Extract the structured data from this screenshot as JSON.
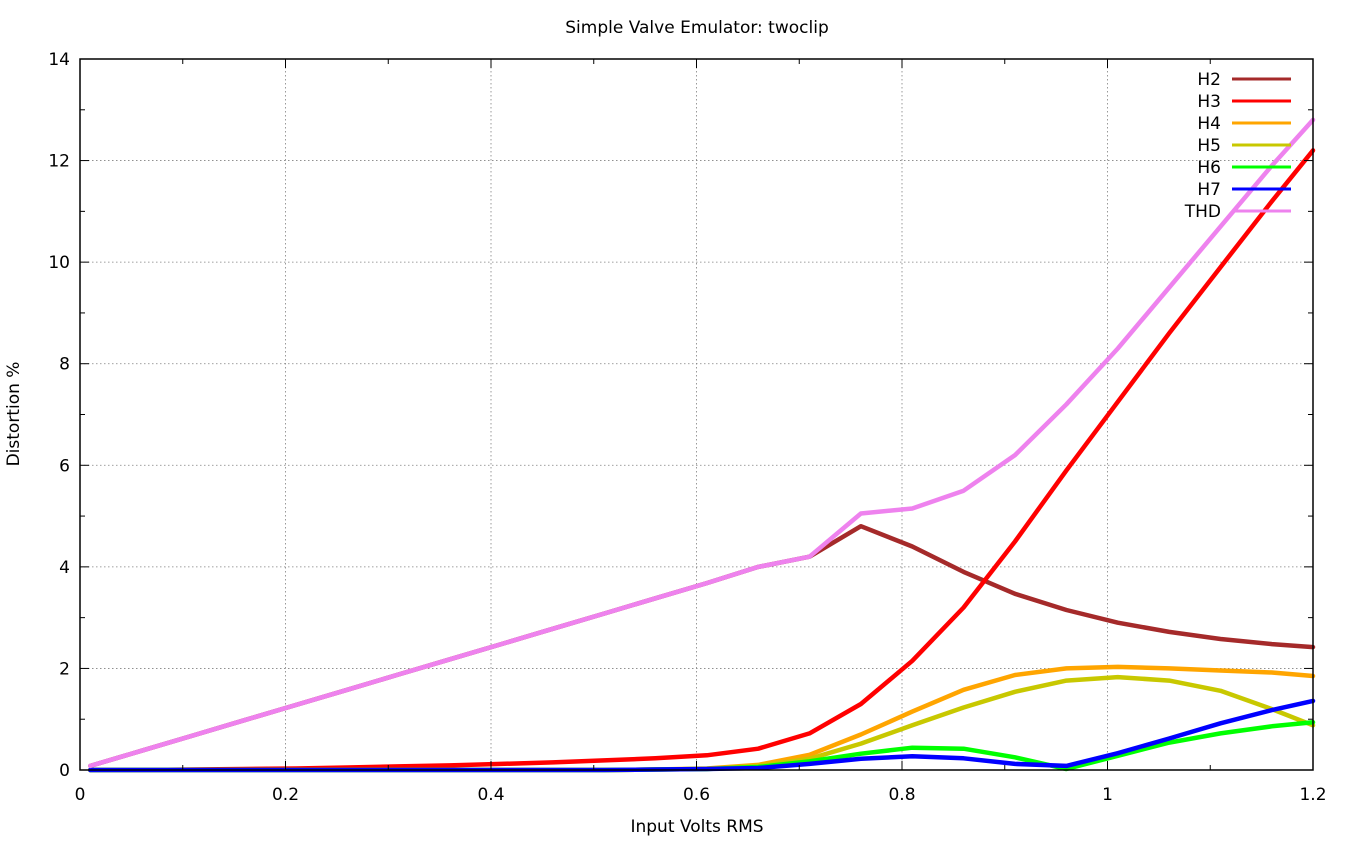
{
  "chart_data": {
    "type": "line",
    "title": "Simple Valve Emulator: twoclip",
    "xlabel": "Input Volts RMS",
    "ylabel": "Distortion %",
    "xlim": [
      0,
      1.2
    ],
    "ylim": [
      0,
      14
    ],
    "xticks": [
      0,
      0.2,
      0.4,
      0.6,
      0.8,
      1,
      1.2
    ],
    "xtick_labels": [
      "0",
      "0.2",
      "0.4",
      "0.6",
      "0.8",
      "1",
      "1.2"
    ],
    "yticks": [
      0,
      2,
      4,
      6,
      8,
      10,
      12,
      14
    ],
    "ytick_labels": [
      "0",
      "2",
      "4",
      "6",
      "8",
      "10",
      "12",
      "14"
    ],
    "grid": true,
    "legend_position": "top-right",
    "x": [
      0.01,
      0.06,
      0.11,
      0.16,
      0.21,
      0.26,
      0.31,
      0.36,
      0.41,
      0.46,
      0.51,
      0.56,
      0.61,
      0.66,
      0.71,
      0.76,
      0.81,
      0.86,
      0.91,
      0.96,
      1.01,
      1.06,
      1.11,
      1.16,
      1.2
    ],
    "series": [
      {
        "name": "H2",
        "color": "#a52a2a",
        "values": [
          0.08,
          0.38,
          0.68,
          0.98,
          1.28,
          1.58,
          1.88,
          2.18,
          2.48,
          2.78,
          3.08,
          3.38,
          3.68,
          4.0,
          4.2,
          4.8,
          4.4,
          3.9,
          3.47,
          3.15,
          2.9,
          2.72,
          2.58,
          2.48,
          2.42
        ]
      },
      {
        "name": "H3",
        "color": "#ff0000",
        "values": [
          0.0,
          0.0,
          0.01,
          0.02,
          0.03,
          0.05,
          0.07,
          0.09,
          0.12,
          0.15,
          0.19,
          0.23,
          0.29,
          0.42,
          0.72,
          1.3,
          2.15,
          3.2,
          4.5,
          5.9,
          7.25,
          8.6,
          9.9,
          11.2,
          12.2
        ]
      },
      {
        "name": "H4",
        "color": "#ffa500",
        "values": [
          0.0,
          0.0,
          0.0,
          0.0,
          0.0,
          0.0,
          0.0,
          0.0,
          0.0,
          0.0,
          0.0,
          0.01,
          0.03,
          0.1,
          0.3,
          0.7,
          1.15,
          1.58,
          1.87,
          2.0,
          2.03,
          2.0,
          1.96,
          1.92,
          1.85
        ]
      },
      {
        "name": "H5",
        "color": "#c8c800",
        "values": [
          0.0,
          0.0,
          0.0,
          0.0,
          0.0,
          0.0,
          0.0,
          0.0,
          0.0,
          0.0,
          0.0,
          0.01,
          0.02,
          0.08,
          0.22,
          0.52,
          0.88,
          1.23,
          1.54,
          1.76,
          1.83,
          1.76,
          1.56,
          1.2,
          0.88
        ]
      },
      {
        "name": "H6",
        "color": "#00ff00",
        "values": [
          0.0,
          0.0,
          0.0,
          0.0,
          0.0,
          0.0,
          0.0,
          0.0,
          0.0,
          0.0,
          0.0,
          0.01,
          0.02,
          0.06,
          0.17,
          0.32,
          0.44,
          0.42,
          0.25,
          0.02,
          0.28,
          0.54,
          0.72,
          0.86,
          0.94
        ]
      },
      {
        "name": "H7",
        "color": "#0000ff",
        "values": [
          0.0,
          0.0,
          0.0,
          0.0,
          0.0,
          0.0,
          0.0,
          0.0,
          0.0,
          0.0,
          0.0,
          0.01,
          0.02,
          0.04,
          0.12,
          0.22,
          0.27,
          0.23,
          0.12,
          0.08,
          0.33,
          0.62,
          0.92,
          1.18,
          1.36
        ]
      },
      {
        "name": "THD",
        "color": "#ee82ee",
        "values": [
          0.08,
          0.38,
          0.68,
          0.98,
          1.28,
          1.58,
          1.88,
          2.18,
          2.48,
          2.78,
          3.08,
          3.38,
          3.68,
          4.0,
          4.2,
          5.05,
          5.15,
          5.5,
          6.2,
          7.2,
          8.3,
          9.5,
          10.7,
          11.9,
          12.8
        ]
      }
    ]
  }
}
